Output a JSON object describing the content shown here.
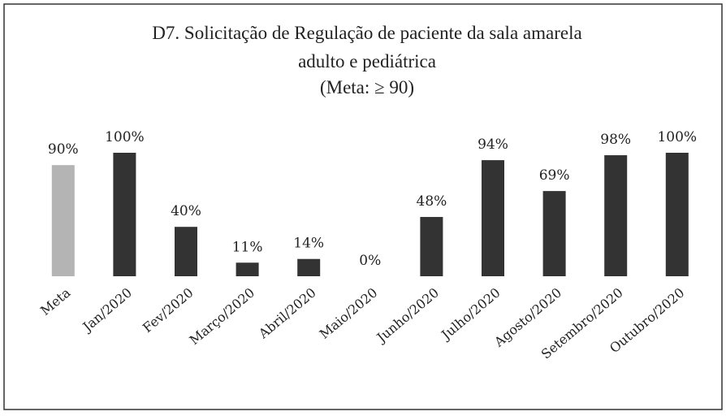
{
  "chart_data": {
    "type": "bar",
    "title": [
      "D7. Solicitação de Regulação de paciente da sala amarela",
      "adulto e pediátrica",
      "(Meta: ≥ 90)"
    ],
    "categories": [
      "Meta",
      "Jan/2020",
      "Fev/2020",
      "Março/2020",
      "Abril/2020",
      "Maio/2020",
      "Junho/2020",
      "Julho/2020",
      "Agosto/2020",
      "Setembro/2020",
      "Outubro/2020"
    ],
    "values": [
      90,
      100,
      40,
      11,
      14,
      0,
      48,
      94,
      69,
      98,
      100
    ],
    "value_labels": [
      "90%",
      "100%",
      "40%",
      "11%",
      "14%",
      "0%",
      "48%",
      "94%",
      "69%",
      "98%",
      "100%"
    ],
    "colors": [
      "#b4b4b4",
      "#333333",
      "#333333",
      "#333333",
      "#333333",
      "#333333",
      "#333333",
      "#333333",
      "#333333",
      "#333333",
      "#333333"
    ]
  }
}
